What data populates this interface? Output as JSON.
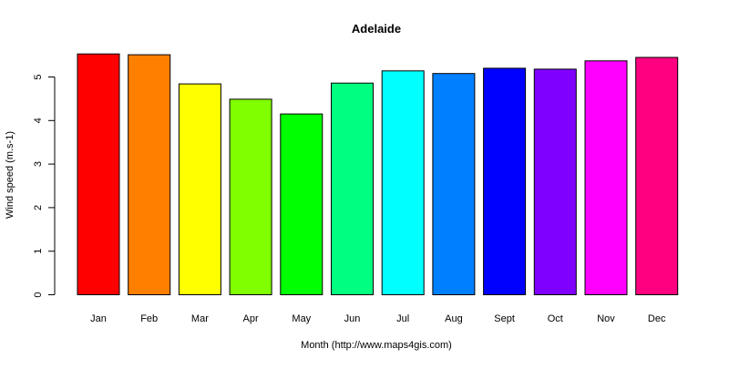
{
  "chart_data": {
    "type": "bar",
    "title": "Adelaide",
    "xlabel": "Month (http://www.maps4gis.com)",
    "ylabel": "Wind speed (m.s-1)",
    "categories": [
      "Jan",
      "Feb",
      "Mar",
      "Apr",
      "May",
      "Jun",
      "Jul",
      "Aug",
      "Sept",
      "Oct",
      "Nov",
      "Dec"
    ],
    "values": [
      5.53,
      5.51,
      4.84,
      4.49,
      4.15,
      4.86,
      5.14,
      5.08,
      5.2,
      5.18,
      5.37,
      5.45
    ],
    "colors": [
      "#FF0000",
      "#FF8000",
      "#FFFF00",
      "#80FF00",
      "#00FF00",
      "#00FF80",
      "#00FFFF",
      "#0080FF",
      "#0000FF",
      "#8000FF",
      "#FF00FF",
      "#FF0080"
    ],
    "ylim": [
      0,
      5.53
    ],
    "yticks": [
      "0",
      "1",
      "2",
      "3",
      "4",
      "5"
    ],
    "grid": false,
    "legend": "none"
  }
}
